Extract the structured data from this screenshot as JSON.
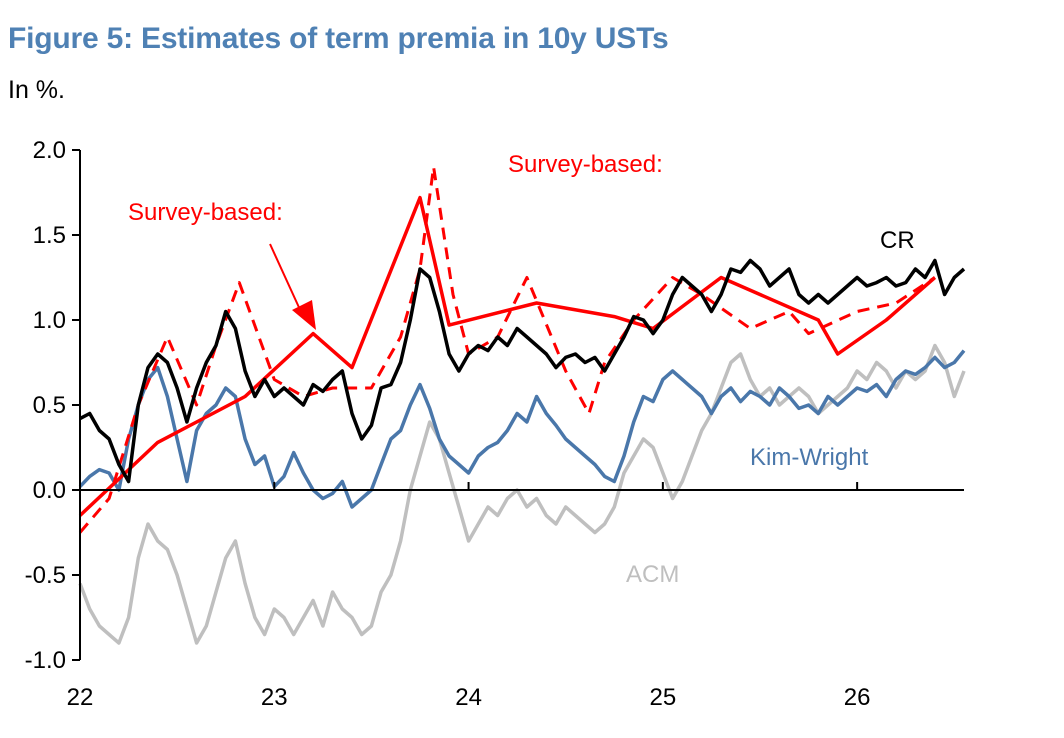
{
  "title": "Figure 5: Estimates of term premia in 10y USTs",
  "subtitle": "In %.",
  "colors": {
    "title": "#4f81b4",
    "cr": "#000000",
    "kim_wright": "#4a77aa",
    "acm": "#bfbfbf",
    "survey": "#ff0000"
  },
  "chart_data": {
    "type": "line",
    "title": "Figure 5: Estimates of term premia in 10y USTs",
    "ylabel": "In %.",
    "xlabel": "",
    "xlim": [
      22.0,
      26.55
    ],
    "ylim": [
      -1.0,
      2.0
    ],
    "xticks": [
      22,
      23,
      24,
      25,
      26
    ],
    "xtick_labels": [
      "22",
      "23",
      "24",
      "25",
      "26"
    ],
    "yticks": [
      2.0,
      1.5,
      1.0,
      0.5,
      0.0,
      -0.5,
      -1.0
    ],
    "ytick_labels": [
      "2.0",
      "1.5",
      "1.0",
      "0.5",
      "0.0",
      "-0.5",
      "-1.0"
    ],
    "grid": false,
    "series": [
      {
        "name": "CR",
        "color": "#000000",
        "style": "solid",
        "x": [
          22.0,
          22.05,
          22.1,
          22.15,
          22.2,
          22.25,
          22.3,
          22.35,
          22.4,
          22.45,
          22.5,
          22.55,
          22.6,
          22.65,
          22.7,
          22.75,
          22.8,
          22.85,
          22.9,
          22.95,
          23.0,
          23.05,
          23.1,
          23.15,
          23.2,
          23.25,
          23.3,
          23.35,
          23.4,
          23.45,
          23.5,
          23.55,
          23.6,
          23.65,
          23.7,
          23.75,
          23.8,
          23.85,
          23.9,
          23.95,
          24.0,
          24.05,
          24.1,
          24.15,
          24.2,
          24.25,
          24.3,
          24.35,
          24.4,
          24.45,
          24.5,
          24.55,
          24.6,
          24.65,
          24.7,
          24.75,
          24.8,
          24.85,
          24.9,
          24.95,
          25.0,
          25.05,
          25.1,
          25.15,
          25.2,
          25.25,
          25.3,
          25.35,
          25.4,
          25.45,
          25.5,
          25.55,
          25.6,
          25.65,
          25.7,
          25.75,
          25.8,
          25.85,
          25.9,
          25.95,
          26.0,
          26.05,
          26.1,
          26.15,
          26.2,
          26.25,
          26.3,
          26.35,
          26.4,
          26.45,
          26.5,
          26.55
        ],
        "y": [
          0.42,
          0.45,
          0.35,
          0.3,
          0.15,
          0.05,
          0.5,
          0.72,
          0.8,
          0.75,
          0.6,
          0.4,
          0.6,
          0.75,
          0.85,
          1.05,
          0.95,
          0.7,
          0.55,
          0.65,
          0.55,
          0.6,
          0.55,
          0.5,
          0.62,
          0.58,
          0.65,
          0.7,
          0.45,
          0.3,
          0.38,
          0.6,
          0.62,
          0.75,
          1.0,
          1.3,
          1.25,
          1.05,
          0.8,
          0.7,
          0.8,
          0.85,
          0.82,
          0.9,
          0.85,
          0.95,
          0.9,
          0.85,
          0.8,
          0.72,
          0.78,
          0.8,
          0.75,
          0.78,
          0.7,
          0.8,
          0.9,
          1.02,
          1.0,
          0.92,
          1.0,
          1.15,
          1.25,
          1.2,
          1.15,
          1.05,
          1.15,
          1.3,
          1.28,
          1.35,
          1.3,
          1.2,
          1.25,
          1.3,
          1.15,
          1.1,
          1.15,
          1.1,
          1.15,
          1.2,
          1.25,
          1.2,
          1.22,
          1.25,
          1.2,
          1.22,
          1.3,
          1.25,
          1.35,
          1.15,
          1.25,
          1.3
        ]
      },
      {
        "name": "Kim-Wright",
        "color": "#4a77aa",
        "style": "solid",
        "x": [
          22.0,
          22.05,
          22.1,
          22.15,
          22.2,
          22.25,
          22.3,
          22.35,
          22.4,
          22.45,
          22.5,
          22.55,
          22.6,
          22.65,
          22.7,
          22.75,
          22.8,
          22.85,
          22.9,
          22.95,
          23.0,
          23.05,
          23.1,
          23.15,
          23.2,
          23.25,
          23.3,
          23.35,
          23.4,
          23.45,
          23.5,
          23.55,
          23.6,
          23.65,
          23.7,
          23.75,
          23.8,
          23.85,
          23.9,
          23.95,
          24.0,
          24.05,
          24.1,
          24.15,
          24.2,
          24.25,
          24.3,
          24.35,
          24.4,
          24.45,
          24.5,
          24.55,
          24.6,
          24.65,
          24.7,
          24.75,
          24.8,
          24.85,
          24.9,
          24.95,
          25.0,
          25.05,
          25.1,
          25.15,
          25.2,
          25.25,
          25.3,
          25.35,
          25.4,
          25.45,
          25.5,
          25.55,
          25.6,
          25.65,
          25.7,
          25.75,
          25.8,
          25.85,
          25.9,
          25.95,
          26.0,
          26.05,
          26.1,
          26.15,
          26.2,
          26.25,
          26.3,
          26.35,
          26.4,
          26.45,
          26.5,
          26.55
        ],
        "y": [
          0.02,
          0.08,
          0.12,
          0.1,
          0.0,
          0.3,
          0.5,
          0.65,
          0.72,
          0.55,
          0.3,
          0.05,
          0.35,
          0.45,
          0.5,
          0.6,
          0.55,
          0.3,
          0.15,
          0.2,
          0.02,
          0.08,
          0.22,
          0.1,
          0.0,
          -0.05,
          -0.02,
          0.05,
          -0.1,
          -0.05,
          0.0,
          0.15,
          0.3,
          0.35,
          0.5,
          0.62,
          0.48,
          0.3,
          0.2,
          0.15,
          0.1,
          0.2,
          0.25,
          0.28,
          0.35,
          0.45,
          0.4,
          0.55,
          0.45,
          0.38,
          0.3,
          0.25,
          0.2,
          0.15,
          0.08,
          0.05,
          0.2,
          0.4,
          0.55,
          0.52,
          0.65,
          0.7,
          0.65,
          0.6,
          0.55,
          0.45,
          0.55,
          0.6,
          0.52,
          0.58,
          0.55,
          0.5,
          0.6,
          0.55,
          0.48,
          0.5,
          0.45,
          0.55,
          0.5,
          0.55,
          0.6,
          0.58,
          0.62,
          0.55,
          0.65,
          0.7,
          0.68,
          0.72,
          0.78,
          0.72,
          0.75,
          0.82
        ]
      },
      {
        "name": "ACM",
        "color": "#bfbfbf",
        "style": "solid",
        "x": [
          22.0,
          22.05,
          22.1,
          22.15,
          22.2,
          22.25,
          22.3,
          22.35,
          22.4,
          22.45,
          22.5,
          22.55,
          22.6,
          22.65,
          22.7,
          22.75,
          22.8,
          22.85,
          22.9,
          22.95,
          23.0,
          23.05,
          23.1,
          23.15,
          23.2,
          23.25,
          23.3,
          23.35,
          23.4,
          23.45,
          23.5,
          23.55,
          23.6,
          23.65,
          23.7,
          23.75,
          23.8,
          23.85,
          23.9,
          23.95,
          24.0,
          24.05,
          24.1,
          24.15,
          24.2,
          24.25,
          24.3,
          24.35,
          24.4,
          24.45,
          24.5,
          24.55,
          24.6,
          24.65,
          24.7,
          24.75,
          24.8,
          24.85,
          24.9,
          24.95,
          25.0,
          25.05,
          25.1,
          25.15,
          25.2,
          25.25,
          25.3,
          25.35,
          25.4,
          25.45,
          25.5,
          25.55,
          25.6,
          25.65,
          25.7,
          25.75,
          25.8,
          25.85,
          25.9,
          25.95,
          26.0,
          26.05,
          26.1,
          26.15,
          26.2,
          26.25,
          26.3,
          26.35,
          26.4,
          26.45,
          26.5,
          26.55
        ],
        "y": [
          -0.55,
          -0.7,
          -0.8,
          -0.85,
          -0.9,
          -0.75,
          -0.4,
          -0.2,
          -0.3,
          -0.35,
          -0.5,
          -0.7,
          -0.9,
          -0.8,
          -0.6,
          -0.4,
          -0.3,
          -0.55,
          -0.75,
          -0.85,
          -0.7,
          -0.75,
          -0.85,
          -0.75,
          -0.65,
          -0.8,
          -0.6,
          -0.7,
          -0.75,
          -0.85,
          -0.8,
          -0.6,
          -0.5,
          -0.3,
          0.0,
          0.2,
          0.4,
          0.3,
          0.1,
          -0.1,
          -0.3,
          -0.2,
          -0.1,
          -0.15,
          -0.05,
          0.0,
          -0.1,
          -0.05,
          -0.15,
          -0.2,
          -0.1,
          -0.15,
          -0.2,
          -0.25,
          -0.2,
          -0.1,
          0.1,
          0.2,
          0.3,
          0.25,
          0.1,
          -0.05,
          0.05,
          0.2,
          0.35,
          0.45,
          0.6,
          0.75,
          0.8,
          0.65,
          0.55,
          0.6,
          0.5,
          0.55,
          0.6,
          0.55,
          0.45,
          0.5,
          0.55,
          0.6,
          0.7,
          0.65,
          0.75,
          0.7,
          0.6,
          0.7,
          0.65,
          0.7,
          0.85,
          0.75,
          0.55,
          0.7
        ]
      },
      {
        "name": "Survey-based:",
        "color": "#ff0000",
        "style": "solid",
        "x": [
          22.0,
          22.4,
          22.6,
          22.85,
          23.2,
          23.4,
          23.75,
          23.9,
          24.35,
          24.75,
          24.95,
          25.3,
          25.8,
          25.9,
          26.15,
          26.4
        ],
        "y": [
          -0.15,
          0.28,
          0.4,
          0.55,
          0.92,
          0.72,
          1.72,
          0.97,
          1.1,
          1.02,
          0.95,
          1.25,
          1.0,
          0.8,
          1.0,
          1.25
        ]
      },
      {
        "name": "Survey-based:",
        "color": "#ff0000",
        "style": "dashed",
        "x": [
          22.0,
          22.15,
          22.3,
          22.45,
          22.6,
          22.7,
          22.82,
          23.0,
          23.15,
          23.3,
          23.5,
          23.65,
          23.75,
          23.82,
          23.92,
          24.0,
          24.15,
          24.3,
          24.5,
          24.62,
          24.7,
          24.85,
          25.05,
          25.2,
          25.45,
          25.65,
          25.75,
          26.0,
          26.2,
          26.4
        ],
        "y": [
          -0.25,
          -0.05,
          0.5,
          0.9,
          0.5,
          0.85,
          1.22,
          0.65,
          0.55,
          0.6,
          0.6,
          0.9,
          1.3,
          1.9,
          1.15,
          0.8,
          0.9,
          1.25,
          0.7,
          0.45,
          0.75,
          1.0,
          1.25,
          1.15,
          0.95,
          1.05,
          0.92,
          1.05,
          1.1,
          1.25
        ]
      }
    ]
  },
  "annotations": {
    "survey_left": "Survey-based:",
    "survey_right": "Survey-based:",
    "cr": "CR",
    "kim_wright": "Kim-Wright",
    "acm": "ACM"
  }
}
